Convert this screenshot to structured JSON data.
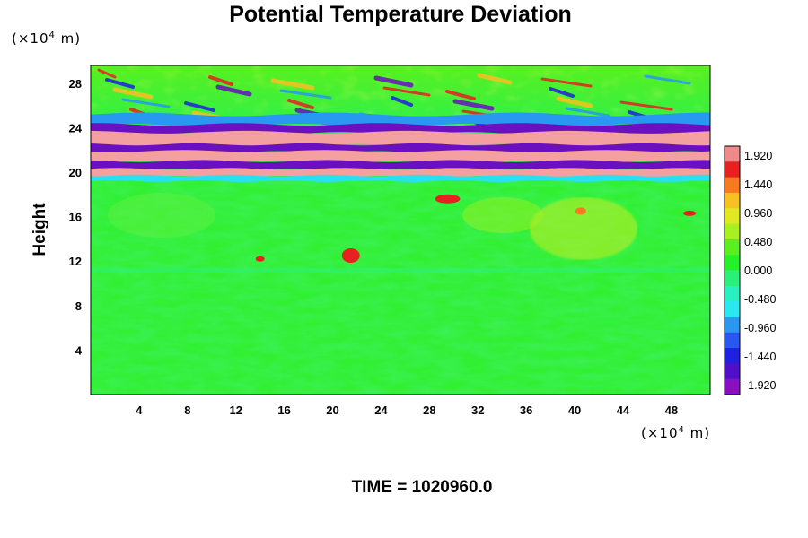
{
  "chart_data": {
    "type": "heatmap",
    "title": "Potential Temperature Deviation",
    "xlabel": "",
    "ylabel": "Height",
    "x_unit": "(×10",
    "y_unit": "(×10",
    "unit_exponent": "4",
    "unit_suffix": " m)",
    "xlim": [
      0,
      51.2
    ],
    "ylim": [
      0,
      29.6
    ],
    "x_ticks": [
      "4",
      "8",
      "12",
      "16",
      "20",
      "24",
      "28",
      "32",
      "36",
      "40",
      "44",
      "48"
    ],
    "y_ticks": [
      "4",
      "8",
      "12",
      "16",
      "20",
      "24",
      "28"
    ],
    "colorbar": {
      "min": -2.08,
      "max": 2.08,
      "labels": [
        "1.920",
        "1.440",
        "0.960",
        "0.480",
        "0.000",
        "-0.480",
        "-0.960",
        "-1.440",
        "-1.920"
      ],
      "colors": [
        "#f08a8a",
        "#e82020",
        "#f87a20",
        "#f8c020",
        "#e0e820",
        "#a8f020",
        "#58f020",
        "#28f028",
        "#28f078",
        "#28f0c0",
        "#28e8f0",
        "#2898f0",
        "#2858f0",
        "#2020e0",
        "#5010c8",
        "#8810c0"
      ]
    },
    "grid": false
  },
  "footer": {
    "time_label": "TIME = 1020960.0"
  }
}
